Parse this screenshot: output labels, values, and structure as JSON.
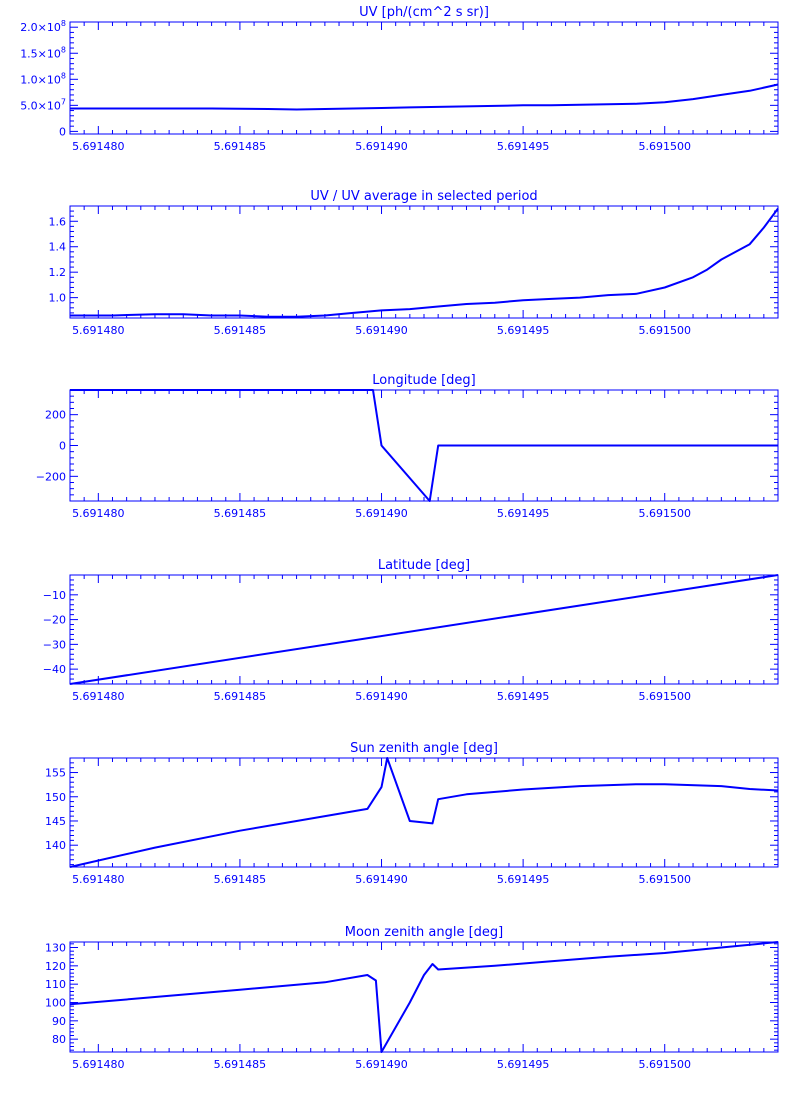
{
  "palette": {
    "ink": "#0000ff",
    "background": "#ffffff"
  },
  "chart_data": [
    {
      "type": "line",
      "title": "UV [ph/(cm^2 s sr)]",
      "xlim": [
        5.691479,
        5.691504
      ],
      "ylim": [
        -5000000,
        210000000
      ],
      "xticks": [
        5.69148,
        5.691485,
        5.69149,
        5.691495,
        5.6915
      ],
      "xtick_labels": [
        "5.691480",
        "5.691485",
        "5.691490",
        "5.691495",
        "5.691500"
      ],
      "yticks": [
        0,
        50000000,
        100000000,
        150000000,
        200000000
      ],
      "ytick_labels": [
        "0",
        "5.0x10^7",
        "1.0x10^8",
        "1.5x10^8",
        "2.0x10^8"
      ],
      "series": [
        {
          "x": [
            5.691479,
            5.69148,
            5.691482,
            5.691484,
            5.691486,
            5.691487,
            5.691488,
            5.691489,
            5.69149,
            5.691491,
            5.691492,
            5.691493,
            5.691494,
            5.691495,
            5.691496,
            5.691497,
            5.691498,
            5.691499,
            5.6915,
            5.691501,
            5.691502,
            5.691503,
            5.691504
          ],
          "y": [
            44000000,
            44000000,
            44000000,
            44000000,
            43000000,
            42000000,
            43000000,
            44000000,
            45000000,
            46000000,
            47000000,
            48000000,
            49000000,
            50000000,
            50000000,
            51000000,
            52000000,
            53000000,
            56000000,
            62000000,
            70000000,
            78000000,
            90000000
          ]
        }
      ]
    },
    {
      "type": "line",
      "title": "UV / UV average in selected period",
      "xlim": [
        5.691479,
        5.691504
      ],
      "ylim": [
        0.84,
        1.72
      ],
      "xticks": [
        5.69148,
        5.691485,
        5.69149,
        5.691495,
        5.6915
      ],
      "xtick_labels": [
        "5.691480",
        "5.691485",
        "5.691490",
        "5.691495",
        "5.691500"
      ],
      "yticks": [
        1.0,
        1.2,
        1.4,
        1.6
      ],
      "ytick_labels": [
        "1.0",
        "1.2",
        "1.4",
        "1.6"
      ],
      "series": [
        {
          "x": [
            5.691479,
            5.6914805,
            5.691482,
            5.691483,
            5.691484,
            5.691485,
            5.691486,
            5.691487,
            5.691488,
            5.691489,
            5.69149,
            5.691491,
            5.691492,
            5.691493,
            5.691494,
            5.691495,
            5.691496,
            5.691497,
            5.691498,
            5.691499,
            5.6915,
            5.691501,
            5.6915015,
            5.691502,
            5.691502,
            5.691503,
            5.6915035,
            5.691504
          ],
          "y": [
            0.86,
            0.86,
            0.87,
            0.87,
            0.86,
            0.86,
            0.85,
            0.85,
            0.86,
            0.88,
            0.9,
            0.91,
            0.93,
            0.95,
            0.96,
            0.98,
            0.99,
            1.0,
            1.02,
            1.03,
            1.08,
            1.16,
            1.22,
            1.3,
            1.3,
            1.42,
            1.55,
            1.7
          ]
        }
      ]
    },
    {
      "type": "line",
      "title": "Longitude [deg]",
      "xlim": [
        5.691479,
        5.691504
      ],
      "ylim": [
        -360,
        360
      ],
      "xticks": [
        5.69148,
        5.691485,
        5.69149,
        5.691495,
        5.6915
      ],
      "xtick_labels": [
        "5.691480",
        "5.691485",
        "5.691490",
        "5.691495",
        "5.691500"
      ],
      "yticks": [
        -200,
        0,
        200
      ],
      "ytick_labels": [
        "−200",
        "0",
        "200"
      ],
      "series": [
        {
          "x": [
            5.691479,
            5.6914897,
            5.69149,
            5.6914917,
            5.691492,
            5.691504
          ],
          "y": [
            360,
            360,
            0,
            -360,
            0,
            0
          ]
        }
      ]
    },
    {
      "type": "line",
      "title": "Latitude [deg]",
      "xlim": [
        5.691479,
        5.691504
      ],
      "ylim": [
        -46,
        -2
      ],
      "xticks": [
        5.69148,
        5.691485,
        5.69149,
        5.691495,
        5.6915
      ],
      "xtick_labels": [
        "5.691480",
        "5.691485",
        "5.691490",
        "5.691495",
        "5.691500"
      ],
      "yticks": [
        -40,
        -30,
        -20,
        -10
      ],
      "ytick_labels": [
        "−40",
        "−30",
        "−20",
        "−10"
      ],
      "series": [
        {
          "x": [
            5.691479,
            5.691504
          ],
          "y": [
            -46,
            -2
          ]
        }
      ]
    },
    {
      "type": "line",
      "title": "Sun zenith angle [deg]",
      "xlim": [
        5.691479,
        5.691504
      ],
      "ylim": [
        135.5,
        158.0
      ],
      "xticks": [
        5.69148,
        5.691485,
        5.69149,
        5.691495,
        5.6915
      ],
      "xtick_labels": [
        "5.691480",
        "5.691485",
        "5.691490",
        "5.691495",
        "5.691500"
      ],
      "yticks": [
        140,
        145,
        150,
        155
      ],
      "ytick_labels": [
        "140",
        "145",
        "150",
        "155"
      ],
      "series": [
        {
          "x": [
            5.691479,
            5.691482,
            5.691485,
            5.691487,
            5.6914895,
            5.69149,
            5.6914902,
            5.691491,
            5.6914918,
            5.691492,
            5.691493,
            5.691495,
            5.691497,
            5.691499,
            5.6915,
            5.691502,
            5.691503,
            5.691504
          ],
          "y": [
            135.5,
            139.5,
            143.0,
            145.0,
            147.5,
            152,
            158.0,
            145.0,
            144.5,
            149.5,
            150.5,
            151.5,
            152.2,
            152.6,
            152.6,
            152.2,
            151.6,
            151.3
          ]
        }
      ]
    },
    {
      "type": "line",
      "title": "Moon zenith angle [deg]",
      "xlim": [
        5.691479,
        5.691504
      ],
      "ylim": [
        73,
        133
      ],
      "xticks": [
        5.69148,
        5.691485,
        5.69149,
        5.691495,
        5.6915
      ],
      "xtick_labels": [
        "5.691480",
        "5.691485",
        "5.691490",
        "5.691495",
        "5.691500"
      ],
      "yticks": [
        80,
        90,
        100,
        110,
        120,
        130
      ],
      "ytick_labels": [
        "80",
        "90",
        "100",
        "110",
        "120",
        "130"
      ],
      "series": [
        {
          "x": [
            5.691479,
            5.691482,
            5.691485,
            5.691488,
            5.6914895,
            5.6914898,
            5.69149,
            5.691491,
            5.6914915,
            5.6914918,
            5.691492,
            5.691494,
            5.691496,
            5.691498,
            5.6915,
            5.691502,
            5.691504
          ],
          "y": [
            99,
            103,
            107,
            111,
            115,
            112,
            73,
            100,
            115,
            121,
            118,
            120,
            122.5,
            125,
            127,
            130,
            133
          ]
        }
      ]
    }
  ]
}
